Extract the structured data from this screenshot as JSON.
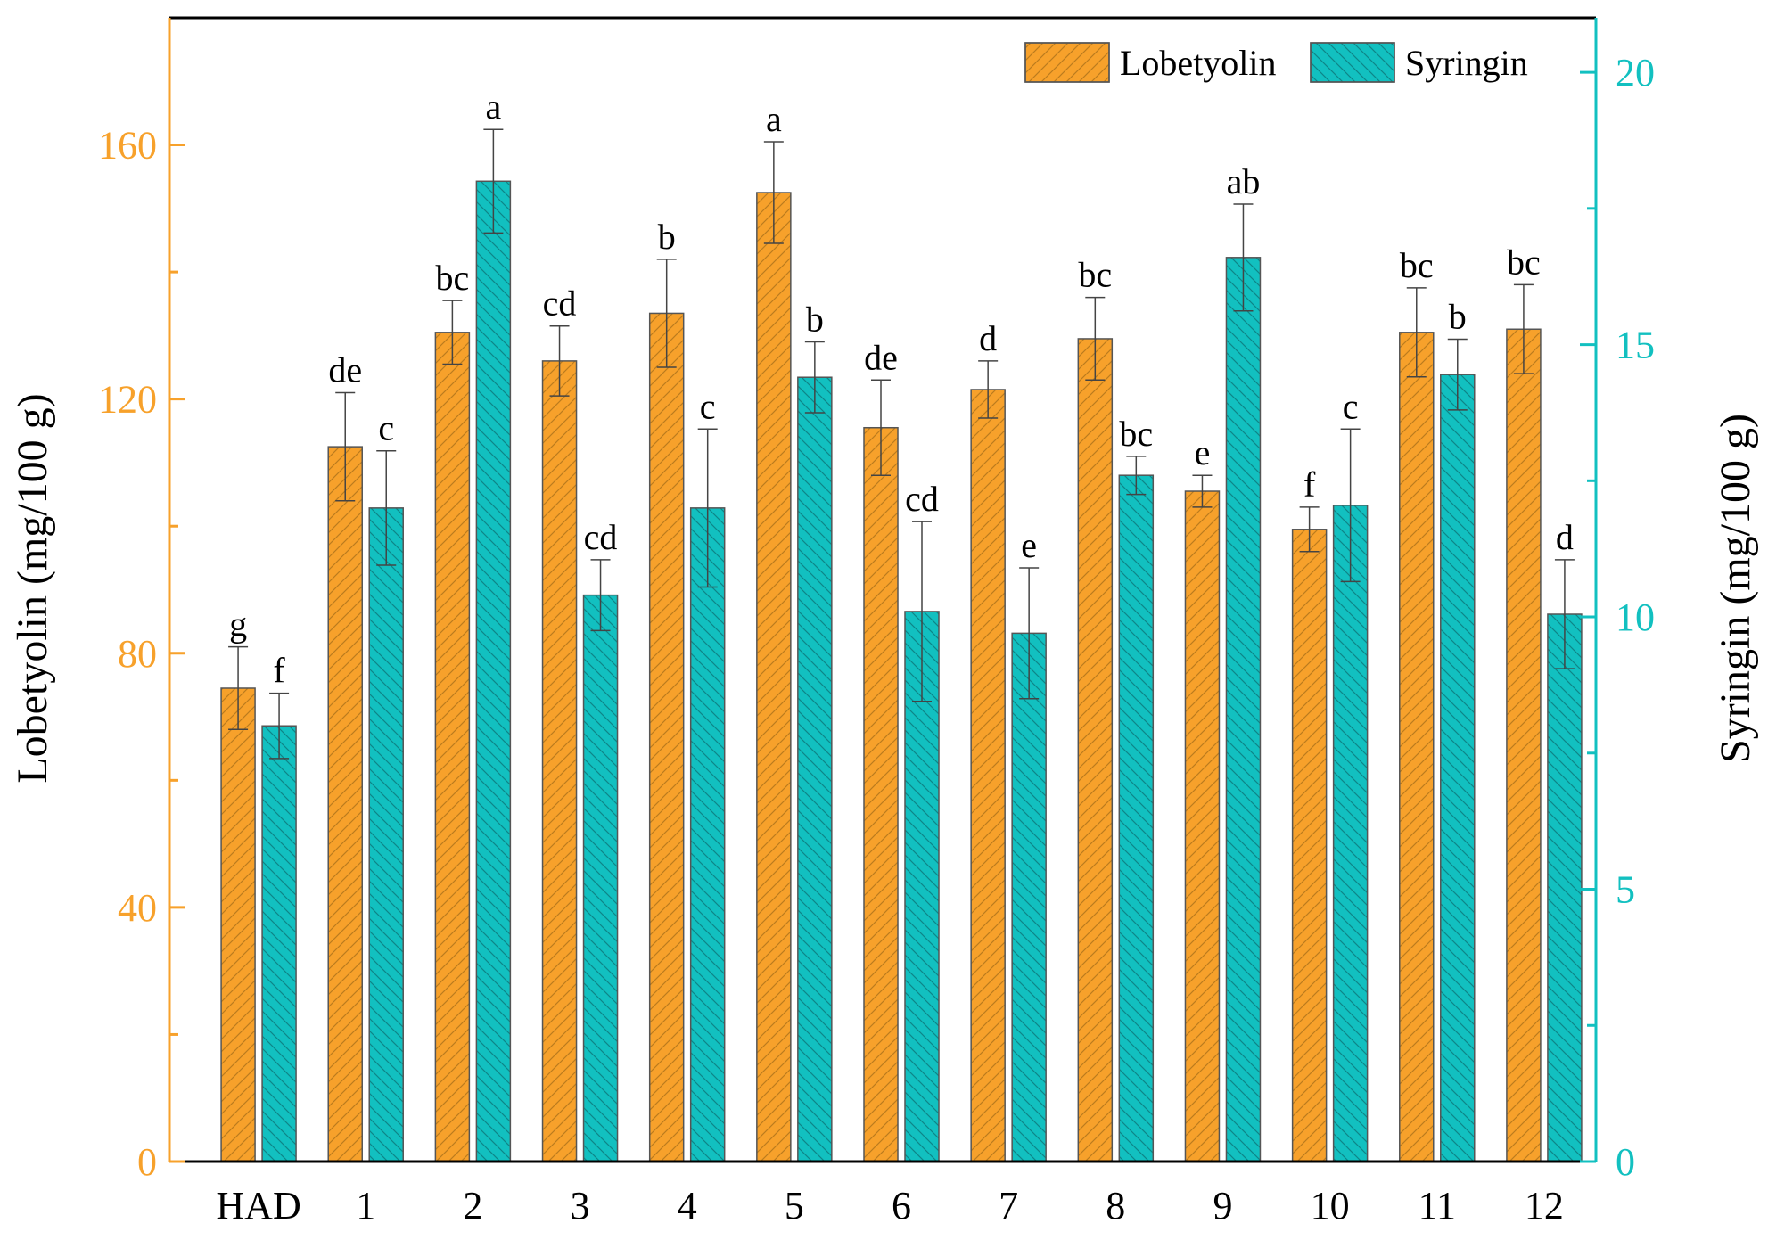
{
  "chart_data": {
    "type": "bar",
    "categories": [
      "HAD",
      "1",
      "2",
      "3",
      "4",
      "5",
      "6",
      "7",
      "8",
      "9",
      "10",
      "11",
      "12"
    ],
    "series": [
      {
        "name": "Lobetyolin",
        "axis": "left",
        "color": "#F7A12B",
        "values": [
          74.5,
          112.5,
          130.5,
          126.0,
          133.5,
          152.5,
          115.5,
          121.5,
          129.5,
          105.5,
          99.5,
          130.5,
          131.0
        ],
        "errors": [
          6.5,
          8.5,
          5.0,
          5.5,
          8.5,
          8.0,
          7.5,
          4.5,
          6.5,
          2.5,
          3.5,
          7.0,
          7.0
        ],
        "letters": [
          "g",
          "de",
          "bc",
          "cd",
          "b",
          "a",
          "de",
          "d",
          "bc",
          "e",
          "f",
          "bc",
          "bc"
        ]
      },
      {
        "name": "Syringin",
        "axis": "right",
        "color": "#12C0C0",
        "values": [
          8.0,
          12.0,
          18.0,
          10.4,
          12.0,
          14.4,
          10.1,
          9.7,
          12.6,
          16.6,
          12.05,
          14.45,
          10.05
        ],
        "errors": [
          0.6,
          1.05,
          0.95,
          0.65,
          1.45,
          0.65,
          1.65,
          1.2,
          0.35,
          0.98,
          1.4,
          0.65,
          1.0
        ],
        "letters": [
          "f",
          "c",
          "a",
          "cd",
          "c",
          "b",
          "cd",
          "e",
          "bc",
          "ab",
          "c",
          "b",
          "d"
        ]
      }
    ],
    "y_left": {
      "label": "Lobetyolin (mg/100 g)",
      "range": [
        0,
        180
      ],
      "ticks": [
        0,
        40,
        80,
        120,
        160
      ],
      "minor_ticks": [
        20,
        60,
        100,
        140
      ],
      "color": "#F7A12B"
    },
    "y_right": {
      "label": "Syringin (mg/100 g)",
      "range": [
        0,
        21
      ],
      "ticks": [
        0,
        5,
        10,
        15,
        20
      ],
      "minor_ticks": [
        2.5,
        7.5,
        12.5,
        17.5
      ],
      "color": "#12C0C0"
    },
    "legend": {
      "position": "top-right",
      "entries": [
        "Lobetyolin",
        "Syringin"
      ]
    },
    "grid": false
  }
}
